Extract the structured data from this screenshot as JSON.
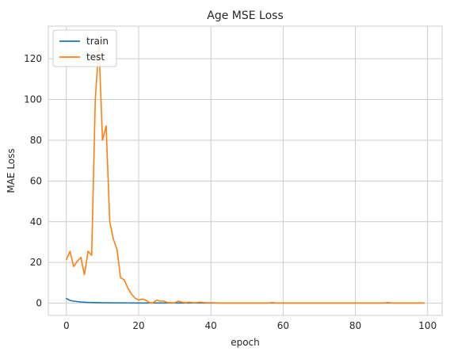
{
  "chart_data": {
    "type": "line",
    "title": "Age MSE Loss",
    "xlabel": "epoch",
    "ylabel": "MAE Loss",
    "xlim": [
      -5,
      104
    ],
    "ylim": [
      -6,
      136
    ],
    "xticks": [
      0,
      20,
      40,
      60,
      80,
      100
    ],
    "yticks": [
      0,
      20,
      40,
      60,
      80,
      100,
      120
    ],
    "grid": true,
    "legend_position": "top-left",
    "series": [
      {
        "name": "train",
        "color": "#1f77b4",
        "x": [
          0,
          1,
          2,
          3,
          4,
          5,
          6,
          7,
          8,
          9,
          10,
          11,
          12,
          13,
          14,
          15,
          16,
          17,
          18,
          19,
          20,
          21,
          22,
          23,
          24,
          25,
          26,
          27,
          28,
          29,
          30,
          31,
          32,
          33,
          34,
          35,
          36,
          37,
          38,
          39,
          40,
          41,
          42,
          43,
          44,
          45,
          46,
          47,
          48,
          49,
          50,
          51,
          52,
          53,
          54,
          55,
          56,
          57,
          58,
          59,
          60,
          61,
          62,
          63,
          64,
          65,
          66,
          67,
          68,
          69,
          70,
          71,
          72,
          73,
          74,
          75,
          76,
          77,
          78,
          79,
          80,
          81,
          82,
          83,
          84,
          85,
          86,
          87,
          88,
          89,
          90,
          91,
          92,
          93,
          94,
          95,
          96,
          97,
          98,
          99
        ],
        "y": [
          2.3,
          1.4,
          1.0,
          0.8,
          0.6,
          0.5,
          0.4,
          0.35,
          0.3,
          0.25,
          0.22,
          0.2,
          0.18,
          0.17,
          0.16,
          0.15,
          0.14,
          0.13,
          0.12,
          0.12,
          0.11,
          0.1,
          0.1,
          0.1,
          0.1,
          0.1,
          0.1,
          0.1,
          0.1,
          0.1,
          0.1,
          0.1,
          0.1,
          0.1,
          0.1,
          0.1,
          0.1,
          0.1,
          0.1,
          0.1,
          0.1,
          0.1,
          0.1,
          0.1,
          0.1,
          0.1,
          0.1,
          0.1,
          0.1,
          0.1,
          0.1,
          0.1,
          0.1,
          0.1,
          0.1,
          0.1,
          0.1,
          0.1,
          0.1,
          0.1,
          0.1,
          0.1,
          0.1,
          0.1,
          0.1,
          0.1,
          0.1,
          0.1,
          0.1,
          0.1,
          0.1,
          0.1,
          0.1,
          0.1,
          0.1,
          0.1,
          0.1,
          0.1,
          0.1,
          0.1,
          0.1,
          0.1,
          0.1,
          0.1,
          0.1,
          0.1,
          0.1,
          0.1,
          0.1,
          0.1,
          0.1,
          0.1,
          0.1,
          0.1,
          0.1,
          0.1,
          0.1,
          0.1,
          0.1,
          0.1
        ]
      },
      {
        "name": "test",
        "color": "#ff7f0e",
        "x": [
          0,
          1,
          2,
          3,
          4,
          5,
          6,
          7,
          8,
          9,
          10,
          11,
          12,
          13,
          14,
          15,
          16,
          17,
          18,
          19,
          20,
          21,
          22,
          23,
          24,
          25,
          26,
          27,
          28,
          29,
          30,
          31,
          32,
          33,
          34,
          35,
          36,
          37,
          38,
          39,
          40,
          41,
          42,
          43,
          44,
          45,
          46,
          47,
          48,
          49,
          50,
          51,
          52,
          53,
          54,
          55,
          56,
          57,
          58,
          59,
          60,
          61,
          62,
          63,
          64,
          65,
          66,
          67,
          68,
          69,
          70,
          71,
          72,
          73,
          74,
          75,
          76,
          77,
          78,
          79,
          80,
          81,
          82,
          83,
          84,
          85,
          86,
          87,
          88,
          89,
          90,
          91,
          92,
          93,
          94,
          95,
          96,
          97,
          98,
          99
        ],
        "y": [
          21.5,
          25.5,
          18.0,
          20.5,
          22.5,
          14.0,
          25.5,
          23.5,
          100.0,
          127.0,
          80.0,
          87.0,
          40.0,
          31.5,
          26.5,
          12.5,
          11.5,
          7.5,
          4.5,
          2.5,
          1.5,
          2.0,
          1.5,
          0.2,
          0.2,
          1.5,
          1.0,
          1.0,
          0.3,
          0.2,
          0.2,
          1.0,
          0.5,
          0.2,
          0.5,
          0.2,
          0.2,
          0.5,
          0.3,
          0.2,
          0.2,
          0.2,
          0.1,
          0.1,
          0.1,
          0.1,
          0.1,
          0.1,
          0.1,
          0.1,
          0.1,
          0.1,
          0.1,
          0.1,
          0.1,
          0.1,
          0.1,
          0.3,
          0.1,
          0.1,
          0.1,
          0.1,
          0.1,
          0.1,
          0.1,
          0.1,
          0.1,
          0.1,
          0.1,
          0.1,
          0.1,
          0.1,
          0.1,
          0.1,
          0.1,
          0.1,
          0.1,
          0.1,
          0.1,
          0.1,
          0.1,
          0.1,
          0.1,
          0.1,
          0.1,
          0.1,
          0.1,
          0.1,
          0.1,
          0.3,
          0.1,
          0.1,
          0.1,
          0.1,
          0.1,
          0.1,
          0.1,
          0.1,
          0.1,
          0.1
        ]
      }
    ]
  }
}
